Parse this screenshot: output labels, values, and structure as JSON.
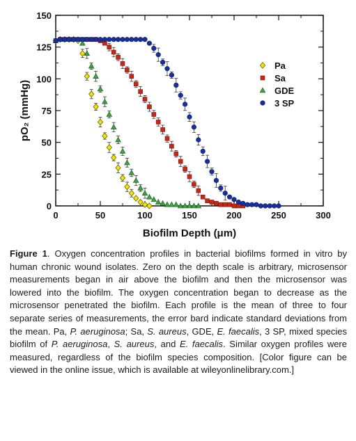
{
  "chart_data": {
    "type": "scatter",
    "xlabel": "Biofilm Depth (μm)",
    "ylabel": "pO₂ (mmHg)",
    "xlim": [
      0,
      300
    ],
    "ylim": [
      0,
      150
    ],
    "xticks": [
      "0",
      "50",
      "100",
      "150",
      "200",
      "250",
      "300"
    ],
    "yticks": [
      "0",
      "25",
      "50",
      "75",
      "100",
      "125",
      "150"
    ],
    "legend_position": "right",
    "grid": false,
    "series": [
      {
        "name": "Pa",
        "marker": "diamond",
        "color": "#f2e600",
        "x": [
          0,
          5,
          10,
          15,
          20,
          25,
          30,
          35,
          40,
          45,
          50,
          55,
          60,
          65,
          70,
          75,
          80,
          85,
          90,
          95,
          100,
          105
        ],
        "y": [
          130,
          131,
          131,
          131,
          131,
          130,
          120,
          102,
          88,
          78,
          66,
          55,
          46,
          38,
          30,
          22,
          15,
          10,
          6,
          3,
          1,
          0
        ]
      },
      {
        "name": "Sa",
        "marker": "square",
        "color": "#c62818",
        "x": [
          0,
          5,
          10,
          15,
          20,
          25,
          30,
          35,
          40,
          45,
          50,
          55,
          60,
          65,
          70,
          75,
          80,
          85,
          90,
          95,
          100,
          105,
          110,
          115,
          120,
          125,
          130,
          135,
          140,
          145,
          150,
          155,
          160,
          165,
          170,
          175,
          180,
          185,
          190,
          195,
          200,
          205,
          210
        ],
        "y": [
          130,
          131,
          131,
          131,
          131,
          131,
          131,
          131,
          131,
          131,
          130,
          128,
          125,
          121,
          117,
          112,
          107,
          102,
          96,
          90,
          84,
          78,
          72,
          66,
          60,
          53,
          47,
          41,
          35,
          29,
          23,
          17,
          12,
          7,
          4,
          3,
          2,
          1,
          1,
          1,
          0,
          0,
          0
        ]
      },
      {
        "name": "GDE",
        "marker": "triangle",
        "color": "#3aa040",
        "x": [
          0,
          5,
          10,
          15,
          20,
          25,
          30,
          35,
          40,
          45,
          50,
          55,
          60,
          65,
          70,
          75,
          80,
          85,
          90,
          95,
          100,
          105,
          110,
          115,
          120,
          125,
          130,
          135,
          140,
          145,
          150,
          155,
          160
        ],
        "y": [
          130,
          131,
          131,
          131,
          131,
          131,
          128,
          120,
          110,
          102,
          92,
          82,
          72,
          62,
          52,
          43,
          34,
          26,
          20,
          14,
          10,
          7,
          5,
          3,
          2,
          1,
          1,
          1,
          0,
          0,
          0,
          0,
          0
        ]
      },
      {
        "name": "3 SP",
        "marker": "circle",
        "color": "#1a2f9e",
        "x": [
          0,
          5,
          10,
          15,
          20,
          25,
          30,
          35,
          40,
          45,
          50,
          55,
          60,
          65,
          70,
          75,
          80,
          85,
          90,
          95,
          100,
          105,
          110,
          115,
          120,
          125,
          130,
          135,
          140,
          145,
          150,
          155,
          160,
          165,
          170,
          175,
          180,
          185,
          190,
          195,
          200,
          205,
          210,
          215,
          220,
          225,
          230,
          235,
          240,
          245,
          250
        ],
        "y": [
          130,
          131,
          131,
          131,
          131,
          131,
          131,
          131,
          131,
          131,
          131,
          131,
          131,
          131,
          131,
          131,
          131,
          131,
          131,
          131,
          131,
          128,
          124,
          119,
          113,
          108,
          103,
          95,
          87,
          80,
          70,
          62,
          52,
          43,
          35,
          27,
          20,
          14,
          10,
          7,
          5,
          3,
          2,
          1,
          1,
          1,
          0,
          0,
          0,
          0,
          0
        ]
      }
    ]
  },
  "caption": {
    "figure_label": "Figure 1",
    "text_1": ". Oxygen concentration profiles in bacterial biofilms formed in vitro by human chronic wound isolates. Zero on the depth scale is arbitrary, microsensor measurements began in air above the biofilm and then the microsensor was lowered into the biofilm. The oxygen concentration began to decrease as the microsensor penetrated the biofilm. Each profile is the mean of three to four separate series of measurements, the error bard indicate standard deviations from the mean. Pa, ",
    "it_pa": "P. aeruginosa",
    "text_2": "; Sa, ",
    "it_sa": "S. aureus",
    "text_3": ", GDE, ",
    "it_ef": "E. faecalis",
    "text_4": ", 3 SP, mixed species biofilm of ",
    "it_pa2": "P. aeruginosa",
    "text_5": ", ",
    "it_sa2": "S. aureus",
    "text_6": ", and ",
    "it_ef2": "E. faecalis",
    "text_7": ". Similar oxygen profiles were measured, regardless of the biofilm species composition. [Color figure can be viewed in the online issue, which is available at wileyonlinelibrary.com.]"
  }
}
